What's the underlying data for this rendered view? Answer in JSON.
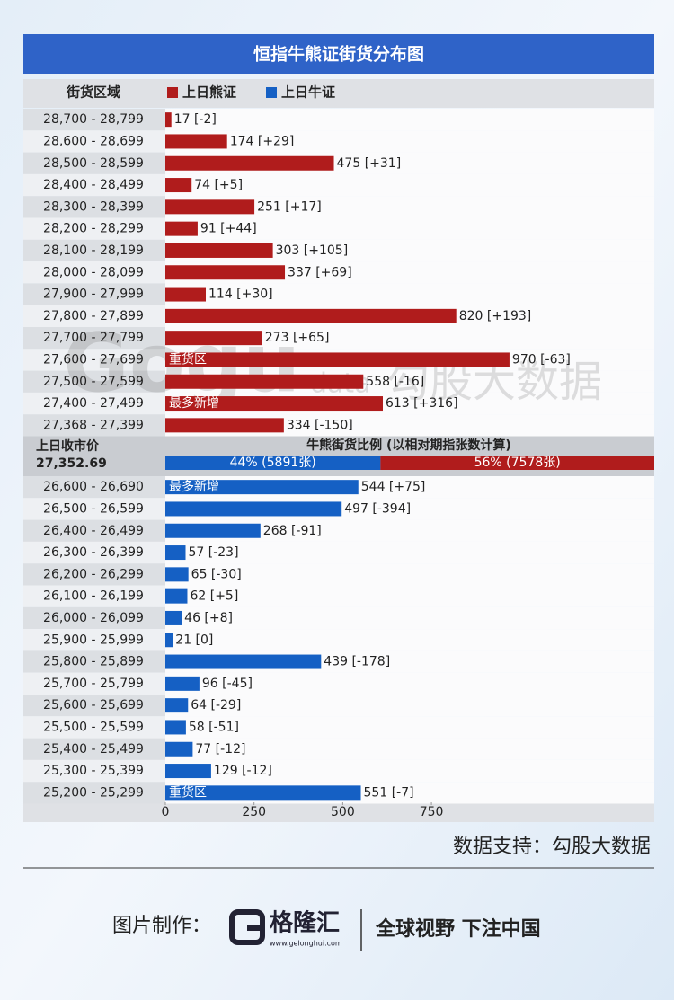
{
  "chart_data": {
    "type": "bar",
    "orientation": "horizontal",
    "title": "恒指牛熊证街货分布图",
    "category_header": "街货区域",
    "xlim": [
      0,
      1378
    ],
    "xticks": [
      0,
      250,
      500,
      750
    ],
    "series": [
      {
        "name": "上日熊证",
        "color": "#b01c1c",
        "categories": [
          "28,700 - 28,799",
          "28,600 - 28,699",
          "28,500 - 28,599",
          "28,400 - 28,499",
          "28,300 - 28,399",
          "28,200 - 28,299",
          "28,100 - 28,199",
          "28,000 - 28,099",
          "27,900 - 27,999",
          "27,800 - 27,899",
          "27,700 - 27,799",
          "27,600 - 27,699",
          "27,500 - 27,599",
          "27,400 - 27,499",
          "27,368 - 27,399"
        ],
        "values": [
          17,
          174,
          475,
          74,
          251,
          91,
          303,
          337,
          114,
          820,
          273,
          970,
          558,
          613,
          334
        ],
        "value_labels": [
          "17 [-2]",
          "174 [+29]",
          "475 [+31]",
          "74 [+5]",
          "251 [+17]",
          "91 [+44]",
          "303 [+105]",
          "337 [+69]",
          "114 [+30]",
          "820 [+193]",
          "273 [+65]",
          "970 [-63]",
          "558 [-16]",
          "613 [+316]",
          "334 [-150]"
        ],
        "notes": [
          null,
          null,
          null,
          null,
          null,
          null,
          null,
          null,
          null,
          null,
          null,
          "重货区",
          null,
          "最多新增",
          null
        ]
      },
      {
        "name": "上日牛证",
        "color": "#1560c4",
        "categories": [
          "26,600 - 26,690",
          "26,500 - 26,599",
          "26,400 - 26,499",
          "26,300 - 26,399",
          "26,200 - 26,299",
          "26,100 - 26,199",
          "26,000 - 26,099",
          "25,900 - 25,999",
          "25,800 - 25,899",
          "25,700 - 25,799",
          "25,600 - 25,699",
          "25,500 - 25,599",
          "25,400 - 25,499",
          "25,300 - 25,399",
          "25,200 - 25,299"
        ],
        "values": [
          544,
          497,
          268,
          57,
          65,
          62,
          46,
          21,
          439,
          96,
          64,
          58,
          77,
          129,
          551
        ],
        "value_labels": [
          "544 [+75]",
          "497 [-394]",
          "268 [-91]",
          "57 [-23]",
          "65 [-30]",
          "62 [+5]",
          "46 [+8]",
          "21 [0]",
          "439 [-178]",
          "96 [-45]",
          "64 [-29]",
          "58 [-51]",
          "77 [-12]",
          "129 [-12]",
          "551 [-7]"
        ],
        "notes": [
          "最多新增",
          null,
          null,
          null,
          null,
          null,
          null,
          null,
          null,
          null,
          null,
          null,
          null,
          null,
          "重货区"
        ]
      }
    ],
    "close_label": "上日收市价",
    "close_value": "27,352.69",
    "ratio": {
      "title": "牛熊街货比例 (以相对期指张数计算)",
      "values": [
        44,
        56
      ],
      "value_labels": [
        "44% (5891张)",
        "56% (7578张)"
      ]
    }
  },
  "watermark": {
    "brand": "Gogu",
    "sub": "data",
    "name": "勾股大数据"
  },
  "footer": {
    "source": "数据支持：勾股大数据",
    "maker": "图片制作：",
    "logo": "格隆汇",
    "url": "www.gelonghui.com",
    "slogan": "全球视野 下注中国"
  }
}
